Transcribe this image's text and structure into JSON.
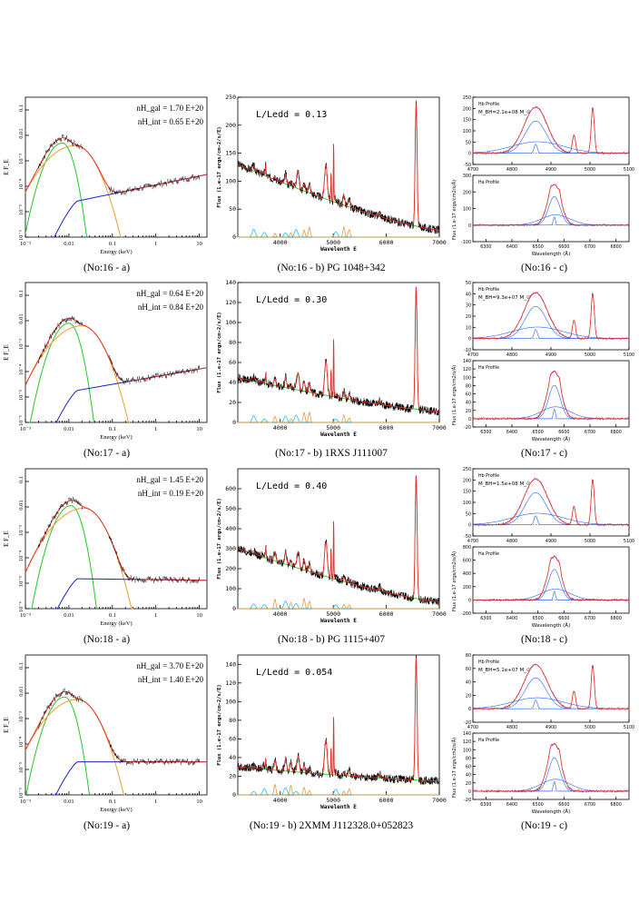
{
  "colors": {
    "data": "#000000",
    "total": "#e8322a",
    "bb1": "#22c629",
    "bb2": "#f39a2a",
    "pl": "#1a22cc",
    "cont": "#3acc3a",
    "fe": "#f0962a",
    "narrow": "#20c0f0",
    "blue": "#2060ff"
  },
  "rows": [
    {
      "id": "16",
      "nh_gal": "nH_gal = 1.70 E+20",
      "nh_int": "nH_int = 0.65 E+20",
      "ledd": "L/Ledd  =  0.13",
      "mbh": "M_BH=2.1e+08 M_⊙",
      "caption_a": "(No:16 - a)",
      "caption_b": "(No:16 - b) PG 1048+342",
      "caption_c": "(No:16 - c)",
      "spec": {
        "ymax": 250,
        "yticks": [
          0,
          50,
          100,
          150,
          200,
          250
        ],
        "amp": 1.0
      },
      "hb": {
        "ymax": 250,
        "yticks": [
          -50,
          0,
          50,
          100,
          150,
          200,
          250
        ]
      },
      "ha": {
        "ymax": 300,
        "yticks": [
          -100,
          0,
          100,
          200,
          300
        ]
      }
    },
    {
      "id": "17",
      "nh_gal": "nH_gal = 0.64 E+20",
      "nh_int": "nH_int = 0.84 E+20",
      "ledd": "L/Ledd  =  0.30",
      "mbh": "M_BH=9.3e+07 M_⊙",
      "caption_a": "(No:17 - a)",
      "caption_b": "(No:17 - b) 1RXS J111007",
      "caption_c": "(No:17 - c)",
      "spec": {
        "ymax": 140,
        "yticks": [
          0,
          20,
          40,
          60,
          80,
          100,
          120,
          140
        ],
        "amp": 0.5
      },
      "hb": {
        "ymax": 50,
        "yticks": [
          -10,
          0,
          10,
          20,
          30,
          40,
          50
        ]
      },
      "ha": {
        "ymax": 140,
        "yticks": [
          -20,
          0,
          20,
          40,
          60,
          80,
          100,
          120,
          140
        ]
      }
    },
    {
      "id": "18",
      "nh_gal": "nH_gal = 1.45 E+20",
      "nh_int": "nH_int = 0.19 E+20",
      "ledd": "L/Ledd  =  0.40",
      "mbh": "M_BH=1.5e+08 M_⊙",
      "caption_a": "(No:18 - a)",
      "caption_b": "(No:18 - b) PG 1115+407",
      "caption_c": "(No:18 - c)",
      "spec": {
        "ymax": 700,
        "yticks": [
          0,
          100,
          200,
          300,
          400,
          500,
          600
        ],
        "amp": 1.0
      },
      "hb": {
        "ymax": 250,
        "yticks": [
          -50,
          0,
          50,
          100,
          150,
          200,
          250
        ]
      },
      "ha": {
        "ymax": 800,
        "yticks": [
          -200,
          0,
          200,
          400,
          600,
          800
        ]
      }
    },
    {
      "id": "19",
      "nh_gal": "nH_gal = 3.70 E+20",
      "nh_int": "nH_int = 1.40 E+20",
      "ledd": "L/Ledd  =  0.054",
      "mbh": "M_BH=5.1e+07 M_⊙",
      "caption_a": "(No:19 - a)",
      "caption_b": "(No:19 - b) 2XMM J112328.0+052823",
      "caption_c": "(No:19 - c)",
      "spec": {
        "ymax": 150,
        "yticks": [
          0,
          20,
          40,
          60,
          80,
          100,
          120,
          140
        ],
        "amp": 0.5
      },
      "hb": {
        "ymax": 80,
        "yticks": [
          -20,
          0,
          20,
          40,
          60,
          80
        ]
      },
      "ha": {
        "ymax": 140,
        "yticks": [
          -20,
          0,
          20,
          40,
          60,
          80,
          100,
          120,
          140
        ]
      }
    }
  ],
  "chart_data": [
    {
      "type": "line",
      "panel": "a",
      "xlabel": "Energy (keV)",
      "ylabel": "E F_E",
      "xscale": "log",
      "yscale": "log",
      "xlim": [
        0.001,
        15
      ],
      "xticks": [
        "10⁻³",
        "0.01",
        "0.1",
        "1",
        "10"
      ],
      "yticks": [
        "10⁻⁶",
        "10⁻⁵",
        "10⁻⁴",
        "10⁻³",
        "0.01",
        "0.1"
      ],
      "series": [
        "data",
        "total model",
        "blackbody 1",
        "blackbody 2",
        "power law"
      ]
    },
    {
      "type": "line",
      "panel": "b",
      "xlabel": "Wavelenth E",
      "ylabel": "Flux (1.e-17 ergs/cm-2/s/E)",
      "xlim": [
        3200,
        7000
      ],
      "xticks": [
        4000,
        5000,
        6000,
        7000
      ]
    },
    {
      "type": "line",
      "panel": "c-top",
      "title": "Hb Profile",
      "xlabel": "",
      "ylabel": "",
      "xticks": [
        4700,
        4800,
        4900,
        5000,
        5100
      ]
    },
    {
      "type": "line",
      "panel": "c-bottom",
      "title": "Ha Profile",
      "xlabel": "Wavelength (Å)",
      "ylabel": "Flux (1.e-17 ergs/cm2/s/Å)",
      "xticks": [
        6300,
        6400,
        6500,
        6600,
        6700,
        6800
      ]
    }
  ]
}
